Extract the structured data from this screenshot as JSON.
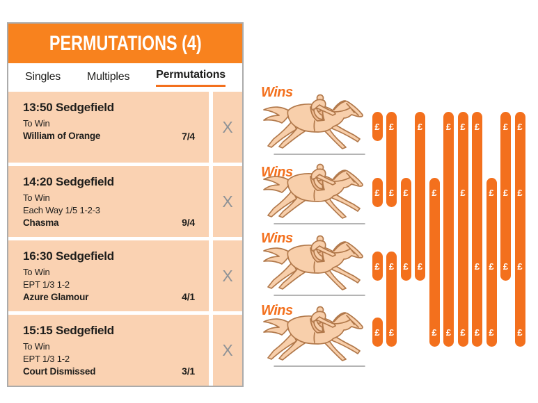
{
  "title": "PERMUTATIONS (4)",
  "tabs": {
    "items": [
      "Singles",
      "Multiples",
      "Permutations"
    ],
    "active": "Permutations"
  },
  "remove_label": "X",
  "selections": [
    {
      "time": "13:50",
      "venue": "Sedgefield",
      "market": "To Win",
      "terms": null,
      "name": "William of Orange",
      "odds": "7/4"
    },
    {
      "time": "14:20",
      "venue": "Sedgefield",
      "market": "To Win",
      "terms": "Each Way 1/5 1-2-3",
      "name": "Chasma",
      "odds": "9/4"
    },
    {
      "time": "16:30",
      "venue": "Sedgefield",
      "market": "To Win",
      "terms": "EPT 1/3 1-2",
      "name": "Azure Glamour",
      "odds": "4/1"
    },
    {
      "time": "15:15",
      "venue": "Sedgefield",
      "market": "To Win",
      "terms": "EPT 1/3 1-2",
      "name": "Court Dismissed",
      "odds": "3/1"
    }
  ],
  "perm_diagram": {
    "wins_label": "Wins",
    "currency_symbol": "£",
    "row_count": 4,
    "bet_columns": [
      {
        "bets": [
          [
            1
          ],
          [
            2
          ],
          [
            3
          ],
          [
            4
          ]
        ]
      },
      {
        "bets": [
          [
            1,
            2
          ],
          [
            3,
            4
          ]
        ]
      },
      {
        "bets": [
          [
            2,
            3
          ]
        ]
      },
      {
        "bets": [
          [
            1,
            3
          ]
        ]
      },
      {
        "bets": [
          [
            2,
            4
          ]
        ]
      },
      {
        "bets": [
          [
            1,
            4
          ]
        ]
      },
      {
        "bets": [
          [
            1,
            2,
            4
          ]
        ]
      },
      {
        "bets": [
          [
            1,
            3,
            4
          ]
        ]
      },
      {
        "bets": [
          [
            2,
            3,
            4
          ]
        ]
      },
      {
        "bets": [
          [
            1,
            2,
            3
          ]
        ]
      },
      {
        "bets": [
          [
            1,
            2,
            3,
            4
          ]
        ]
      }
    ]
  },
  "colors": {
    "accent": "#f3701d",
    "header_orange": "#f8821e",
    "row_background": "#fad2b2",
    "border_gray": "#ababab",
    "remove_x_gray": "#8e9296"
  }
}
